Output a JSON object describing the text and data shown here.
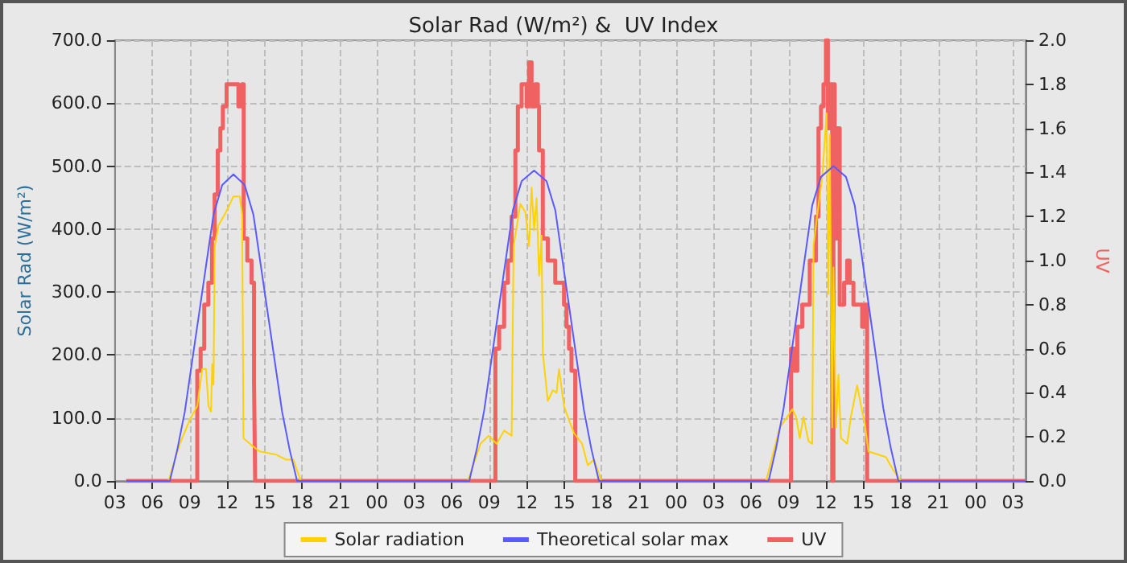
{
  "chart_data": {
    "type": "line",
    "title": "Solar Rad (W/m²) &  UV Index",
    "ylabel": "Solar Rad (W/m²)",
    "y2label": "UV",
    "xlim": [
      3,
      76
    ],
    "xticks": [
      {
        "value": 3,
        "label": "03"
      },
      {
        "value": 6,
        "label": "06"
      },
      {
        "value": 9,
        "label": "09"
      },
      {
        "value": 12,
        "label": "12"
      },
      {
        "value": 15,
        "label": "15"
      },
      {
        "value": 18,
        "label": "18"
      },
      {
        "value": 21,
        "label": "21"
      },
      {
        "value": 24,
        "label": "00"
      },
      {
        "value": 27,
        "label": "03"
      },
      {
        "value": 30,
        "label": "06"
      },
      {
        "value": 33,
        "label": "09"
      },
      {
        "value": 36,
        "label": "12"
      },
      {
        "value": 39,
        "label": "15"
      },
      {
        "value": 42,
        "label": "18"
      },
      {
        "value": 45,
        "label": "21"
      },
      {
        "value": 48,
        "label": "00"
      },
      {
        "value": 51,
        "label": "03"
      },
      {
        "value": 54,
        "label": "06"
      },
      {
        "value": 57,
        "label": "09"
      },
      {
        "value": 60,
        "label": "12"
      },
      {
        "value": 63,
        "label": "15"
      },
      {
        "value": 66,
        "label": "18"
      },
      {
        "value": 69,
        "label": "21"
      },
      {
        "value": 72,
        "label": "00"
      },
      {
        "value": 75,
        "label": "03"
      }
    ],
    "ylim": [
      0,
      700
    ],
    "yticks": [
      {
        "value": 0,
        "label": "0.0"
      },
      {
        "value": 100,
        "label": "100.0"
      },
      {
        "value": 200,
        "label": "200.0"
      },
      {
        "value": 300,
        "label": "300.0"
      },
      {
        "value": 400,
        "label": "400.0"
      },
      {
        "value": 500,
        "label": "500.0"
      },
      {
        "value": 600,
        "label": "600.0"
      },
      {
        "value": 700,
        "label": "700.0"
      }
    ],
    "y2lim": [
      0,
      2
    ],
    "y2ticks": [
      {
        "value": 0,
        "label": "0.0"
      },
      {
        "value": 0.2,
        "label": "0.2"
      },
      {
        "value": 0.4,
        "label": "0.4"
      },
      {
        "value": 0.6,
        "label": "0.6"
      },
      {
        "value": 0.8,
        "label": "0.8"
      },
      {
        "value": 1,
        "label": "1.0"
      },
      {
        "value": 1.2,
        "label": "1.2"
      },
      {
        "value": 1.4,
        "label": "1.4"
      },
      {
        "value": 1.6,
        "label": "1.6"
      },
      {
        "value": 1.8,
        "label": "1.8"
      },
      {
        "value": 2,
        "label": "2.0"
      }
    ],
    "grid": true,
    "legend": "bottom",
    "marker": "none",
    "line_style": "solid",
    "series": [
      {
        "name": "Solar radiation",
        "type": "line",
        "color": "#ffd200",
        "x": [
          3.9,
          7.3,
          8.2,
          9.0,
          9.6,
          10.0,
          10.3,
          10.5,
          10.7,
          10.8,
          10.9,
          11.0,
          11.3,
          11.9,
          12.5,
          13.0,
          13.2,
          13.3,
          14.0,
          14.6,
          15.9,
          16.7,
          17.3,
          17.9,
          31.3,
          32.3,
          32.96,
          33.6,
          34.2,
          34.8,
          34.96,
          35.5,
          35.9,
          36.2,
          36.4,
          36.6,
          36.8,
          37.0,
          37.2,
          37.3,
          37.7,
          38.1,
          38.4,
          38.6,
          39.0,
          39.3,
          39.8,
          40.45,
          40.9,
          41.4,
          42.0,
          55.2,
          56.3,
          56.9,
          57.3,
          57.6,
          57.9,
          58.2,
          58.6,
          58.9,
          59.0,
          59.3,
          59.7,
          60.05,
          60.2,
          60.3,
          60.5,
          60.6,
          60.8,
          61.0,
          61.2,
          61.7,
          62.0,
          62.5,
          62.9,
          63.1,
          63.4,
          64.8,
          65.4,
          66.0,
          76
        ],
        "values": [
          0,
          0,
          59,
          97,
          119,
          178,
          178,
          119,
          110,
          186,
          153,
          373,
          406,
          427,
          452,
          452,
          423,
          68,
          56,
          47,
          42,
          34,
          34,
          0,
          0,
          59,
          72,
          59,
          80,
          72,
          373,
          440,
          427,
          373,
          466,
          398,
          449,
          326,
          390,
          203,
          127,
          144,
          140,
          178,
          119,
          102,
          76,
          59,
          25,
          34,
          0,
          0,
          85,
          102,
          114,
          102,
          68,
          102,
          63,
          59,
          373,
          423,
          483,
          584,
          297,
          550,
          85,
          339,
          85,
          169,
          68,
          59,
          102,
          152,
          110,
          93,
          47,
          38,
          17,
          0,
          0
        ]
      },
      {
        "name": "Theoretical solar max",
        "type": "line",
        "color": "#5a5aff",
        "x": [
          3.9,
          7.4,
          8.0,
          8.6,
          9.9,
          10.9,
          11.6,
          12.5,
          13.4,
          14.1,
          15.1,
          16.4,
          17.0,
          17.6,
          31.4,
          32.0,
          32.6,
          33.9,
          34.9,
          35.6,
          36.6,
          37.6,
          38.3,
          39.3,
          40.6,
          41.2,
          41.8,
          55.4,
          56.0,
          56.6,
          57.9,
          58.9,
          59.6,
          60.6,
          61.6,
          62.3,
          63.3,
          64.6,
          65.2,
          65.8,
          76
        ],
        "values": [
          0,
          0,
          50,
          110,
          287,
          423,
          470,
          487,
          470,
          423,
          287,
          110,
          50,
          0,
          0,
          50,
          112,
          292,
          430,
          476,
          493,
          476,
          430,
          292,
          112,
          50,
          0,
          0,
          52,
          115,
          297,
          438,
          483,
          500,
          483,
          438,
          297,
          115,
          52,
          0,
          0
        ]
      },
      {
        "name": "UV",
        "type": "step",
        "axis": "y2",
        "color": "#f06262",
        "x": [
          3.9,
          9.6,
          9.87,
          10.16,
          10.49,
          10.78,
          10.99,
          11.24,
          11.45,
          11.65,
          11.95,
          12.9,
          13.2,
          13.32,
          13.61,
          13.95,
          14.15,
          14.24,
          33.5,
          33.8,
          34.2,
          34.5,
          34.8,
          35.1,
          35.3,
          35.6,
          36.0,
          36.2,
          36.4,
          36.7,
          36.9,
          37.0,
          37.3,
          37.7,
          38.3,
          39.0,
          39.2,
          39.4,
          39.6,
          39.9,
          57.2,
          57.5,
          57.7,
          58.1,
          58.7,
          59.2,
          59.4,
          59.6,
          59.8,
          60.0,
          60.15,
          60.3,
          60.5,
          60.6,
          60.7,
          60.9,
          61.1,
          61.45,
          61.7,
          61.9,
          62.2,
          62.9,
          63.1,
          63.3,
          76
        ],
        "values": [
          0,
          0.5,
          0.6,
          0.8,
          0.9,
          1.1,
          1.3,
          1.5,
          1.6,
          1.7,
          1.8,
          1.7,
          1.8,
          1.1,
          1.0,
          0.9,
          0.45,
          0,
          0.6,
          0.7,
          0.9,
          1.0,
          1.2,
          1.5,
          1.7,
          1.8,
          1.7,
          1.9,
          1.7,
          1.8,
          1.7,
          1.5,
          1.1,
          1.0,
          0.9,
          0.8,
          0.7,
          0.6,
          0.5,
          0,
          0.6,
          0.5,
          0.7,
          0.8,
          1.0,
          1.2,
          1.6,
          1.7,
          1.8,
          2.0,
          1.6,
          1.8,
          0,
          1.8,
          1.1,
          1.6,
          0.8,
          0.9,
          1.0,
          0.9,
          0.8,
          0.7,
          0.8,
          0,
          0
        ]
      }
    ]
  }
}
